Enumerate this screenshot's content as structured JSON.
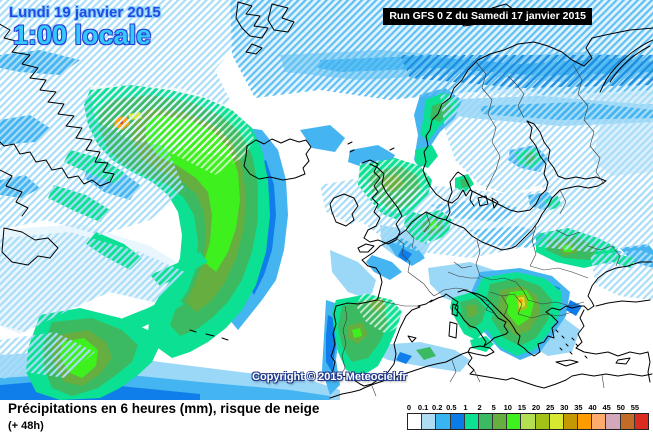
{
  "header": {
    "date_line": "Lundi 19 janvier 2015",
    "time_line": "1:00 locale",
    "run_label": "Run GFS 0 Z du Samedi 17 janvier 2015"
  },
  "map": {
    "copyright": "Copyright © 2015 Meteociel.fr"
  },
  "caption": {
    "line1": "Précipitations en 6 heures (mm), risque de neige",
    "line2": "(+ 48h)"
  },
  "legend": {
    "unit": "mm",
    "values": [
      "0",
      "0.1",
      "0.2",
      "0.5",
      "1",
      "2",
      "5",
      "10",
      "15",
      "20",
      "25",
      "30",
      "35",
      "40",
      "45",
      "50",
      "55"
    ],
    "colors": [
      "#ffffff",
      "#aedcf2",
      "#38b4f0",
      "#0a7ce8",
      "#0ce092",
      "#3cba62",
      "#66ae40",
      "#3ef01e",
      "#b2e052",
      "#a2c218",
      "#d8e830",
      "#c49a04",
      "#ff9d00",
      "#ffab6e",
      "#d2a8ba",
      "#c26c28",
      "#db2c1e"
    ]
  },
  "palette": {
    "hatch_light_blue": "#a9ddf8",
    "hatch_medium_blue": "#5fc0f3",
    "hatch_strong_blue": "#1e8fe0",
    "solid_pale": "#d9effc",
    "solid_light": "#9bd7f7",
    "solid_medium": "#45b5f2",
    "solid_deep": "#0f7eea",
    "date_blue": "#2549e8",
    "time_cyan": "#35c8fb"
  }
}
